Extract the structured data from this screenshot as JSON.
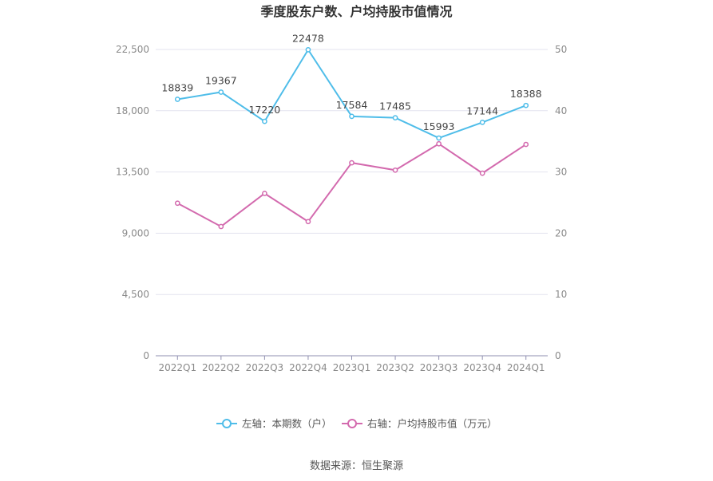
{
  "chart_data": {
    "type": "line",
    "title": "季度股东户数、户均持股市值情况",
    "categories": [
      "2022Q1",
      "2022Q2",
      "2022Q3",
      "2022Q4",
      "2023Q1",
      "2023Q2",
      "2023Q3",
      "2023Q4",
      "2024Q1"
    ],
    "y_left": {
      "ticks": [
        "0",
        "4,500",
        "9,000",
        "13,500",
        "18,000",
        "22,500"
      ],
      "ylim": [
        0,
        22500
      ]
    },
    "y_right": {
      "ticks": [
        "0",
        "10",
        "20",
        "30",
        "40",
        "50"
      ],
      "ylim": [
        0,
        50
      ]
    },
    "series": [
      {
        "name": "左轴：本期数（户）",
        "axis": "left",
        "color": "#4fbde9",
        "values": [
          18839,
          19367,
          17220,
          22478,
          17584,
          17485,
          15993,
          17144,
          18388
        ],
        "labels": [
          "18839",
          "19367",
          "17220",
          "22478",
          "17584",
          "17485",
          "15993",
          "17144",
          "18388"
        ]
      },
      {
        "name": "右轴：户均持股市值（万元）",
        "axis": "right",
        "color": "#d36aae",
        "values": [
          24.9,
          21.1,
          26.5,
          21.9,
          31.5,
          30.3,
          34.6,
          29.8,
          34.5
        ]
      }
    ],
    "grid": true,
    "legend_position": "bottom"
  },
  "source": "数据来源：恒生聚源"
}
